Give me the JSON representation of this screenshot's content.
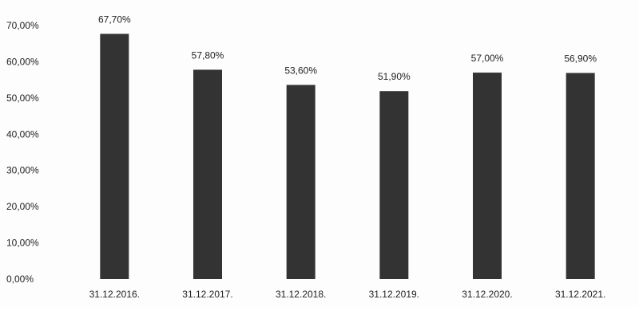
{
  "chart_data": {
    "type": "bar",
    "title": "",
    "xlabel": "",
    "ylabel": "",
    "categories": [
      "31.12.2016.",
      "31.12.2017.",
      "31.12.2018.",
      "31.12.2019.",
      "31.12.2020.",
      "31.12.2021."
    ],
    "values": [
      67.7,
      57.8,
      53.6,
      51.9,
      57.0,
      56.9
    ],
    "data_labels": [
      "67,70%",
      "57,80%",
      "53,60%",
      "51,90%",
      "57,00%",
      "56,90%"
    ],
    "yticks": [
      0,
      10,
      20,
      30,
      40,
      50,
      60,
      70
    ],
    "ytick_labels": [
      "0,00%",
      "10,00%",
      "20,00%",
      "30,00%",
      "40,00%",
      "50,00%",
      "60,00%",
      "70,00%"
    ],
    "ylim": [
      0,
      70
    ],
    "grid": false,
    "legend": "none",
    "bar_color": "#333333"
  }
}
